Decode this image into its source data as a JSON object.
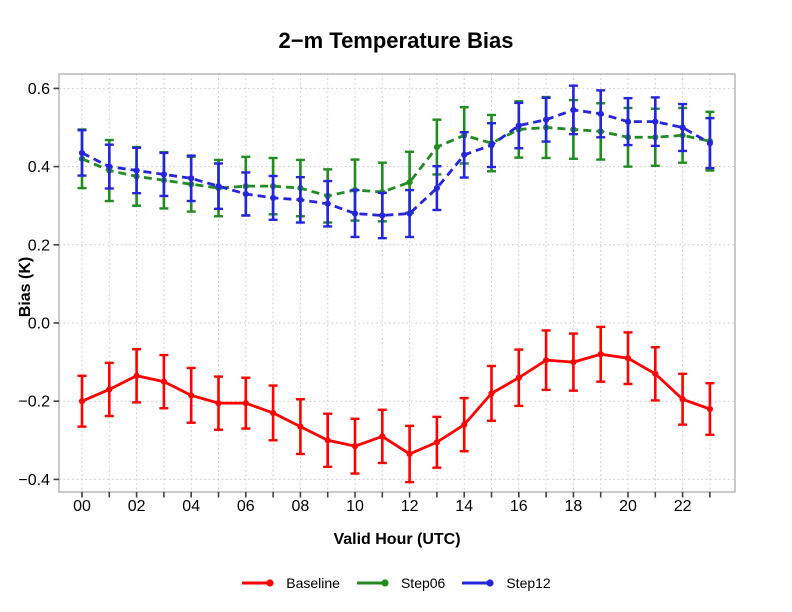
{
  "title": "2−m Temperature Bias",
  "chart_data": {
    "type": "line",
    "title": "2−m Temperature Bias",
    "xlabel": "Valid Hour (UTC)",
    "ylabel": "Bias (K)",
    "x_hours": [
      0,
      1,
      2,
      3,
      4,
      5,
      6,
      7,
      8,
      9,
      10,
      11,
      12,
      13,
      14,
      15,
      16,
      17,
      18,
      19,
      20,
      21,
      22,
      23
    ],
    "xtick_labels": [
      "00",
      "02",
      "04",
      "06",
      "08",
      "10",
      "12",
      "14",
      "16",
      "18",
      "20",
      "22"
    ],
    "ytick_values": [
      0.6,
      0.4,
      0.2,
      0.0,
      -0.2,
      -0.4
    ],
    "ytick_labels": [
      "0.6",
      "0.4",
      "0.2",
      "0.0",
      "−0.2",
      "−0.4"
    ],
    "ylim": [
      -0.43,
      0.64
    ],
    "grid": "dotted-both-axes",
    "error_bars": true,
    "legend_position": "bottom-center",
    "series": [
      {
        "name": "Baseline",
        "color": "#ff0000",
        "line_style": "solid",
        "marker": "circle",
        "values": [
          -0.2,
          -0.17,
          -0.135,
          -0.15,
          -0.185,
          -0.205,
          -0.205,
          -0.23,
          -0.265,
          -0.3,
          -0.315,
          -0.29,
          -0.335,
          -0.305,
          -0.26,
          -0.18,
          -0.14,
          -0.095,
          -0.1,
          -0.08,
          -0.09,
          -0.13,
          -0.195,
          -0.22
        ],
        "errors": [
          0.065,
          0.068,
          0.068,
          0.068,
          0.07,
          0.068,
          0.065,
          0.07,
          0.07,
          0.068,
          0.07,
          0.068,
          0.072,
          0.065,
          0.068,
          0.07,
          0.072,
          0.076,
          0.073,
          0.07,
          0.066,
          0.068,
          0.065,
          0.066
        ]
      },
      {
        "name": "Step06",
        "color": "#228b22",
        "line_style": "dashed",
        "marker": "circle",
        "values": [
          0.42,
          0.39,
          0.375,
          0.365,
          0.355,
          0.345,
          0.35,
          0.35,
          0.345,
          0.325,
          0.34,
          0.335,
          0.36,
          0.45,
          0.48,
          0.46,
          0.495,
          0.5,
          0.495,
          0.49,
          0.475,
          0.475,
          0.48,
          0.465
        ],
        "errors": [
          0.075,
          0.078,
          0.075,
          0.072,
          0.07,
          0.072,
          0.075,
          0.072,
          0.072,
          0.068,
          0.078,
          0.075,
          0.078,
          0.07,
          0.072,
          0.072,
          0.072,
          0.078,
          0.075,
          0.072,
          0.075,
          0.073,
          0.07,
          0.075
        ]
      },
      {
        "name": "Step12",
        "color": "#2525dc",
        "line_style": "dashed",
        "marker": "circle",
        "values": [
          0.435,
          0.4,
          0.39,
          0.38,
          0.37,
          0.35,
          0.33,
          0.32,
          0.315,
          0.305,
          0.28,
          0.275,
          0.28,
          0.345,
          0.43,
          0.455,
          0.505,
          0.52,
          0.545,
          0.535,
          0.515,
          0.515,
          0.5,
          0.46
        ],
        "errors": [
          0.058,
          0.056,
          0.058,
          0.055,
          0.058,
          0.058,
          0.055,
          0.056,
          0.058,
          0.058,
          0.06,
          0.058,
          0.06,
          0.056,
          0.058,
          0.056,
          0.058,
          0.056,
          0.062,
          0.06,
          0.06,
          0.062,
          0.06,
          0.064
        ]
      }
    ],
    "panel_border_color": "#b4b4b4",
    "grid_color": "#c9c9c9",
    "tick_color": "#404040"
  }
}
